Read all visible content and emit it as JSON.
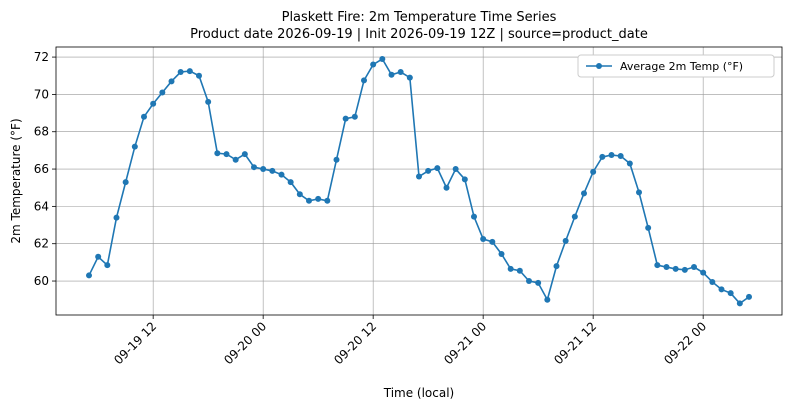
{
  "chart_data": {
    "type": "line",
    "title": "Plaskett Fire: 2m Temperature Time Series",
    "subtitle": "Product date 2026-09-19 | Init 2026-09-19 12Z | source=product_date",
    "x_label": "Time (local)",
    "y_label": "2m Temperature (°F)",
    "x": [
      "09-19 05",
      "09-19 06",
      "09-19 07",
      "09-19 08",
      "09-19 09",
      "09-19 10",
      "09-19 11",
      "09-19 12",
      "09-19 13",
      "09-19 14",
      "09-19 15",
      "09-19 16",
      "09-19 17",
      "09-19 18",
      "09-19 19",
      "09-19 20",
      "09-19 21",
      "09-19 22",
      "09-19 23",
      "09-20 00",
      "09-20 01",
      "09-20 02",
      "09-20 03",
      "09-20 04",
      "09-20 05",
      "09-20 06",
      "09-20 07",
      "09-20 08",
      "09-20 09",
      "09-20 10",
      "09-20 11",
      "09-20 12",
      "09-20 13",
      "09-20 14",
      "09-20 15",
      "09-20 16",
      "09-20 17",
      "09-20 18",
      "09-20 19",
      "09-20 20",
      "09-20 21",
      "09-20 22",
      "09-20 23",
      "09-21 00",
      "09-21 01",
      "09-21 02",
      "09-21 03",
      "09-21 04",
      "09-21 05",
      "09-21 06",
      "09-21 07",
      "09-21 08",
      "09-21 09",
      "09-21 10",
      "09-21 11",
      "09-21 12",
      "09-21 13",
      "09-21 14",
      "09-21 15",
      "09-21 16",
      "09-21 17",
      "09-21 18",
      "09-21 19",
      "09-21 20",
      "09-21 21",
      "09-21 22",
      "09-21 23",
      "09-22 00",
      "09-22 01",
      "09-22 02",
      "09-22 03",
      "09-22 04",
      "09-22 05"
    ],
    "series": [
      {
        "name": "Average 2m Temp (°F)",
        "color": "#1f77b4",
        "values": [
          60.3,
          61.3,
          60.85,
          63.4,
          65.3,
          67.2,
          68.8,
          69.5,
          70.1,
          70.7,
          71.2,
          71.25,
          71.0,
          69.6,
          66.85,
          66.8,
          66.5,
          66.8,
          66.1,
          66.0,
          65.9,
          65.7,
          65.3,
          64.65,
          64.3,
          64.4,
          64.3,
          66.5,
          68.7,
          68.8,
          70.75,
          71.6,
          71.9,
          71.05,
          71.2,
          70.9,
          65.6,
          65.9,
          66.05,
          65.0,
          66.0,
          65.45,
          63.45,
          62.25,
          62.1,
          61.45,
          60.65,
          60.55,
          60.0,
          59.9,
          59.0,
          60.8,
          62.15,
          63.45,
          64.7,
          65.85,
          66.65,
          66.75,
          66.7,
          66.3,
          64.75,
          62.85,
          60.85,
          60.75,
          60.65,
          60.6,
          60.75,
          60.45,
          59.95,
          59.55,
          59.35,
          58.8,
          59.15
        ]
      }
    ],
    "xlim": [
      "09-19 01:24",
      "09-22 08:36"
    ],
    "xticks": [
      "09-19 12",
      "09-20 00",
      "09-20 12",
      "09-21 00",
      "09-21 12",
      "09-22 00"
    ],
    "ylim": [
      58.18,
      72.54
    ],
    "yticks": [
      60,
      62,
      64,
      66,
      68,
      70,
      72
    ],
    "grid": true,
    "legend": "upper right"
  }
}
